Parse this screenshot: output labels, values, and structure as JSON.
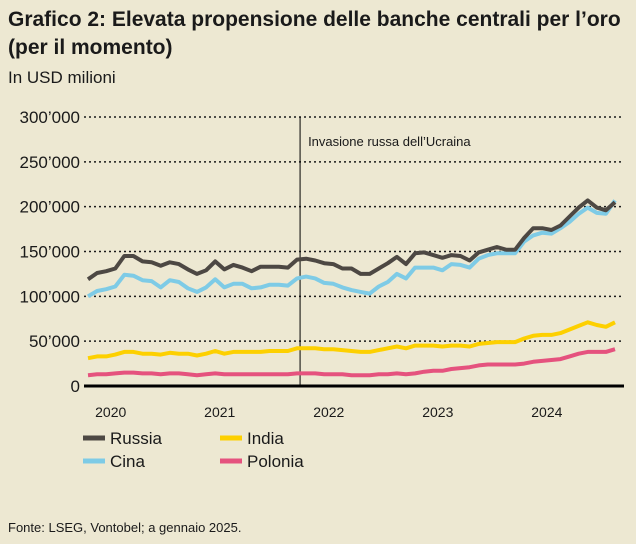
{
  "header": {
    "title": "Grafico 2: Elevata propensione delle banche centrali per l’oro (per il momento)",
    "subtitle": "In USD milioni"
  },
  "footer": {
    "source": "Fonte: LSEG, Vontobel; a gennaio 2025."
  },
  "chart_data": {
    "type": "line",
    "title": "Grafico 2: Elevata propensione delle banche centrali per l’oro (per il momento)",
    "ylabel": "In USD milioni",
    "ylim": [
      0,
      300000
    ],
    "yticks": [
      0,
      50000,
      100000,
      150000,
      200000,
      250000,
      300000
    ],
    "ytick_labels": [
      "0",
      "50’000",
      "100’000",
      "150’000",
      "200’000",
      "250’000",
      "300’000"
    ],
    "xtick_labels": [
      "2020",
      "2021",
      "2022",
      "2023",
      "2024"
    ],
    "x_start": "2020-02",
    "x_end": "2024-12",
    "x_frequency": "monthly",
    "grid": "horizontal dotted",
    "legend_placement": "bottom",
    "annotation": {
      "date": "2022-02",
      "label": "Invasione russa dell’Ucraina"
    },
    "series": [
      {
        "name": "Russia",
        "color": "#4d4843",
        "values": [
          119000,
          126000,
          128000,
          131000,
          145000,
          145000,
          139000,
          138000,
          134000,
          138000,
          136000,
          130000,
          125000,
          129000,
          139000,
          130000,
          135000,
          132000,
          128000,
          133000,
          133000,
          133000,
          132000,
          141000,
          142000,
          140000,
          137000,
          136000,
          131000,
          131000,
          125000,
          125000,
          131000,
          137000,
          144000,
          136000,
          148000,
          149000,
          146000,
          143000,
          146000,
          145000,
          140000,
          149000,
          152000,
          155000,
          152000,
          152000,
          165000,
          176000,
          176000,
          174000,
          179000,
          189000,
          199000,
          207000,
          199000,
          196000,
          205000
        ]
      },
      {
        "name": "Cina",
        "color": "#7ecbe6",
        "values": [
          100000,
          106000,
          108000,
          111000,
          124000,
          123000,
          118000,
          117000,
          110000,
          118000,
          116000,
          109000,
          105000,
          110000,
          119000,
          110000,
          114000,
          114000,
          109000,
          110000,
          113000,
          113000,
          112000,
          120000,
          122000,
          120000,
          115000,
          114000,
          110000,
          107000,
          105000,
          103000,
          111000,
          116000,
          125000,
          120000,
          132000,
          132000,
          132000,
          129000,
          136000,
          135000,
          132000,
          142000,
          146000,
          148000,
          148000,
          148000,
          161000,
          168000,
          171000,
          170000,
          176000,
          183000,
          192000,
          199000,
          193000,
          192000,
          207000
        ]
      },
      {
        "name": "India",
        "color": "#fdd000",
        "values": [
          31000,
          33000,
          33000,
          35000,
          38000,
          38000,
          36000,
          36000,
          35000,
          37000,
          36000,
          36000,
          34000,
          36000,
          39000,
          36000,
          38000,
          38000,
          38000,
          38000,
          39000,
          39000,
          39000,
          42000,
          42000,
          42000,
          41000,
          41000,
          40000,
          39000,
          38000,
          38000,
          40000,
          42000,
          44000,
          42000,
          45000,
          45000,
          45000,
          44000,
          45000,
          45000,
          44000,
          47000,
          48000,
          49000,
          49000,
          49000,
          53000,
          56000,
          57000,
          57000,
          59000,
          63000,
          67000,
          71000,
          68000,
          66000,
          71000
        ]
      },
      {
        "name": "Polonia",
        "color": "#e5527e",
        "values": [
          12000,
          13000,
          13000,
          14000,
          15000,
          15000,
          14000,
          14000,
          13000,
          14000,
          14000,
          13000,
          12000,
          13000,
          14000,
          13000,
          13000,
          13000,
          13000,
          13000,
          13000,
          13000,
          13000,
          14000,
          14000,
          14000,
          13000,
          13000,
          13000,
          12000,
          12000,
          12000,
          13000,
          13000,
          14000,
          13000,
          14000,
          16000,
          17000,
          17000,
          19000,
          20000,
          21000,
          23000,
          24000,
          24000,
          24000,
          24000,
          25000,
          27000,
          28000,
          29000,
          30000,
          33000,
          36000,
          38000,
          38000,
          38000,
          41000
        ]
      }
    ]
  }
}
